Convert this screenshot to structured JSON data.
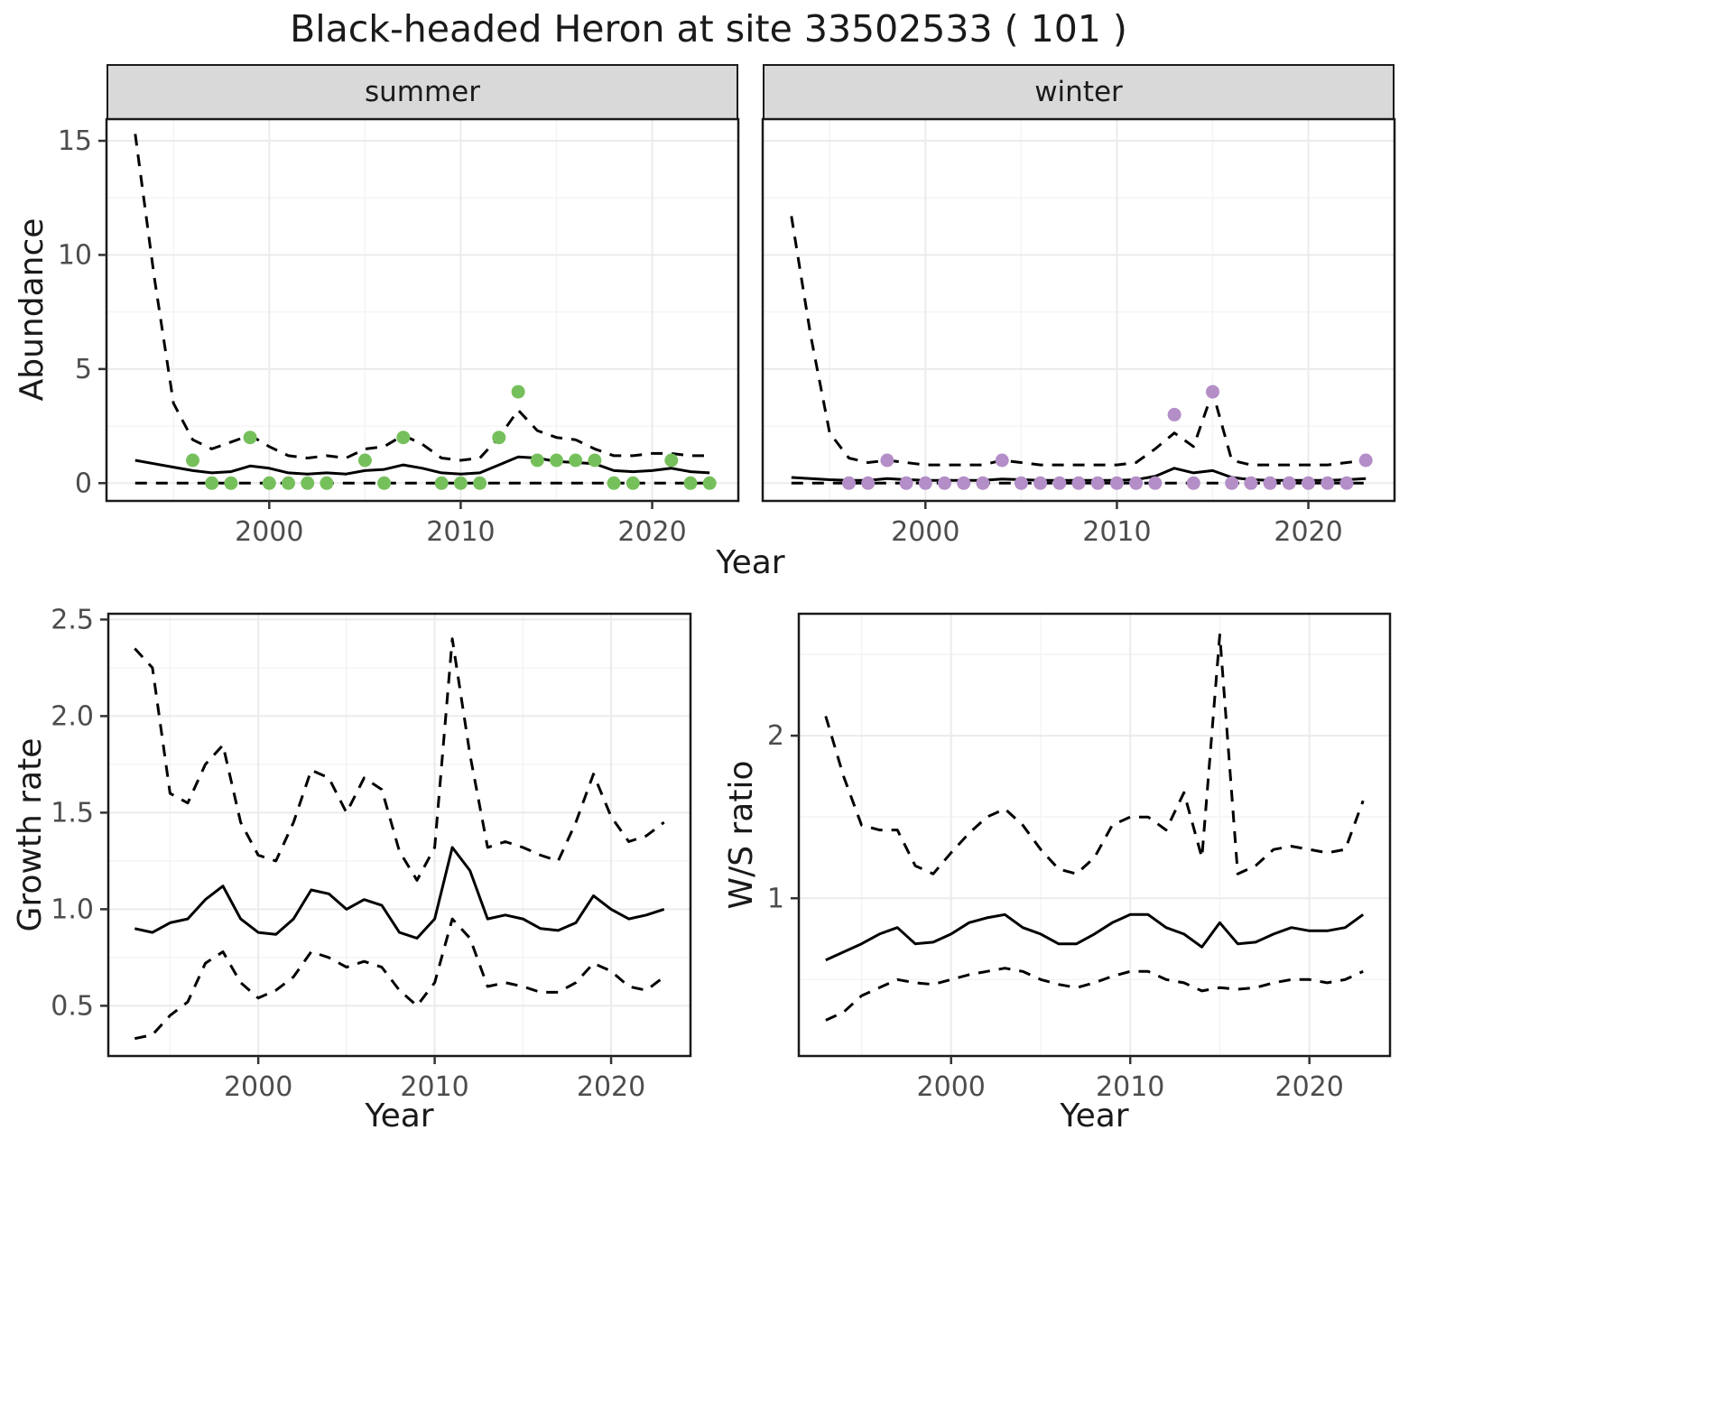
{
  "title": "Black-headed Heron at site 33502533 ( 101 )",
  "colors": {
    "summer_point": "#76C05C",
    "winter_point": "#B48EC7",
    "strip_bg": "#D9D9D9",
    "grid_major": "#EBEBEB",
    "grid_minor": "#F4F4F4",
    "panel_border": "#1A1A1A",
    "line": "#000000",
    "tick_label": "#4D4D4D",
    "tick_mark": "#333333"
  },
  "top_row": {
    "ylabel": "Abundance",
    "xlabel": "Year",
    "facets": [
      "summer",
      "winter"
    ]
  },
  "bottom_left": {
    "ylabel": "Growth rate",
    "xlabel": "Year"
  },
  "bottom_right": {
    "ylabel": "W/S ratio",
    "xlabel": "Year"
  },
  "chart_data": [
    {
      "id": "summer-abundance",
      "type": "line",
      "facet_label": "summer",
      "xlabel": "Year",
      "ylabel": "Abundance",
      "xlim": [
        1991.5,
        2024.5
      ],
      "ylim": [
        -0.78,
        15.95
      ],
      "xticks": [
        2000,
        2010,
        2020
      ],
      "xtick_labels": [
        "2000",
        "2010",
        "2020"
      ],
      "xminor": [
        1995,
        2005,
        2015
      ],
      "yticks": [
        0,
        5,
        10,
        15
      ],
      "ytick_labels": [
        "0",
        "5",
        "10",
        "15"
      ],
      "yminor": [
        2.5,
        7.5,
        12.5
      ],
      "show_ytick_labels": true,
      "x": [
        1993,
        1994,
        1995,
        1996,
        1997,
        1998,
        1999,
        2000,
        2001,
        2002,
        2003,
        2004,
        2005,
        2006,
        2007,
        2008,
        2009,
        2010,
        2011,
        2012,
        2013,
        2014,
        2015,
        2016,
        2017,
        2018,
        2019,
        2020,
        2021,
        2022,
        2023
      ],
      "series": [
        {
          "name": "upper_ci",
          "style": "dashed",
          "values": [
            15.3,
            9.0,
            3.5,
            1.9,
            1.5,
            1.8,
            2.1,
            1.6,
            1.2,
            1.1,
            1.2,
            1.1,
            1.5,
            1.6,
            2.1,
            1.7,
            1.1,
            1.0,
            1.1,
            2.0,
            3.2,
            2.3,
            2.0,
            1.9,
            1.5,
            1.2,
            1.2,
            1.3,
            1.3,
            1.2,
            1.2
          ]
        },
        {
          "name": "mean",
          "style": "solid",
          "values": [
            1.0,
            0.85,
            0.7,
            0.55,
            0.45,
            0.5,
            0.75,
            0.65,
            0.45,
            0.4,
            0.45,
            0.4,
            0.55,
            0.6,
            0.8,
            0.65,
            0.45,
            0.4,
            0.45,
            0.8,
            1.15,
            1.1,
            0.95,
            0.9,
            0.85,
            0.55,
            0.5,
            0.55,
            0.65,
            0.5,
            0.45
          ]
        },
        {
          "name": "lower_ci",
          "style": "dashed",
          "values": [
            0,
            0,
            0,
            0,
            0,
            0,
            0,
            0,
            0,
            0,
            0,
            0,
            0,
            0,
            0,
            0,
            0,
            0,
            0,
            0,
            0,
            0,
            0,
            0,
            0,
            0,
            0,
            0,
            0,
            0,
            0
          ]
        }
      ],
      "points": {
        "color": "#76C05C",
        "x": [
          1996,
          1997,
          1998,
          1999,
          2000,
          2001,
          2002,
          2003,
          2005,
          2006,
          2007,
          2009,
          2010,
          2011,
          2012,
          2013,
          2014,
          2015,
          2016,
          2017,
          2018,
          2019,
          2021,
          2022,
          2023
        ],
        "y": [
          1,
          0,
          0,
          2,
          0,
          0,
          0,
          0,
          1,
          0,
          2,
          0,
          0,
          0,
          2,
          4,
          1,
          1,
          1,
          1,
          0,
          0,
          1,
          0,
          0
        ]
      }
    },
    {
      "id": "winter-abundance",
      "type": "line",
      "facet_label": "winter",
      "xlabel": "Year",
      "ylabel": "Abundance",
      "xlim": [
        1991.5,
        2024.5
      ],
      "ylim": [
        -0.78,
        15.95
      ],
      "xticks": [
        2000,
        2010,
        2020
      ],
      "xtick_labels": [
        "2000",
        "2010",
        "2020"
      ],
      "xminor": [
        1995,
        2005,
        2015
      ],
      "yticks": [
        0,
        5,
        10,
        15
      ],
      "ytick_labels": [
        "0",
        "5",
        "10",
        "15"
      ],
      "yminor": [
        2.5,
        7.5,
        12.5
      ],
      "show_ytick_labels": false,
      "x": [
        1993,
        1994,
        1995,
        1996,
        1997,
        1998,
        1999,
        2000,
        2001,
        2002,
        2003,
        2004,
        2005,
        2006,
        2007,
        2008,
        2009,
        2010,
        2011,
        2012,
        2013,
        2014,
        2015,
        2016,
        2017,
        2018,
        2019,
        2020,
        2021,
        2022,
        2023
      ],
      "series": [
        {
          "name": "upper_ci",
          "style": "dashed",
          "values": [
            11.7,
            6.5,
            2.2,
            1.1,
            0.9,
            1.0,
            0.9,
            0.8,
            0.8,
            0.8,
            0.8,
            1.0,
            0.9,
            0.8,
            0.8,
            0.8,
            0.8,
            0.8,
            0.9,
            1.5,
            2.2,
            1.6,
            4.0,
            1.0,
            0.8,
            0.8,
            0.8,
            0.8,
            0.8,
            0.9,
            1.0
          ]
        },
        {
          "name": "mean",
          "style": "solid",
          "values": [
            0.25,
            0.2,
            0.15,
            0.12,
            0.12,
            0.2,
            0.15,
            0.12,
            0.12,
            0.12,
            0.12,
            0.18,
            0.15,
            0.12,
            0.12,
            0.12,
            0.12,
            0.12,
            0.15,
            0.3,
            0.65,
            0.45,
            0.55,
            0.25,
            0.15,
            0.12,
            0.12,
            0.12,
            0.12,
            0.15,
            0.2
          ]
        },
        {
          "name": "lower_ci",
          "style": "dashed",
          "values": [
            0,
            0,
            0,
            0,
            0,
            0,
            0,
            0,
            0,
            0,
            0,
            0,
            0,
            0,
            0,
            0,
            0,
            0,
            0,
            0,
            0,
            0,
            0,
            0,
            0,
            0,
            0,
            0,
            0,
            0,
            0
          ]
        }
      ],
      "points": {
        "color": "#B48EC7",
        "x": [
          1996,
          1997,
          1998,
          1999,
          2000,
          2001,
          2002,
          2003,
          2004,
          2005,
          2006,
          2007,
          2008,
          2009,
          2010,
          2011,
          2012,
          2013,
          2014,
          2015,
          2016,
          2017,
          2018,
          2019,
          2020,
          2021,
          2022,
          2023
        ],
        "y": [
          0,
          0,
          1,
          0,
          0,
          0,
          0,
          0,
          1,
          0,
          0,
          0,
          0,
          0,
          0,
          0,
          0,
          3,
          0,
          4,
          0,
          0,
          0,
          0,
          0,
          0,
          0,
          1
        ]
      }
    },
    {
      "id": "growth-rate",
      "type": "line",
      "xlabel": "Year",
      "ylabel": "Growth rate",
      "xlim": [
        1991.5,
        2024.5
      ],
      "ylim": [
        0.24,
        2.53
      ],
      "xticks": [
        2000,
        2010,
        2020
      ],
      "xtick_labels": [
        "2000",
        "2010",
        "2020"
      ],
      "xminor": [
        1995,
        2005,
        2015
      ],
      "yticks": [
        0.5,
        1.0,
        1.5,
        2.0,
        2.5
      ],
      "ytick_labels": [
        "0.5",
        "1.0",
        "1.5",
        "2.0",
        "2.5"
      ],
      "yminor": [
        0.75,
        1.25,
        1.75,
        2.25
      ],
      "show_ytick_labels": true,
      "x": [
        1993,
        1994,
        1995,
        1996,
        1997,
        1998,
        1999,
        2000,
        2001,
        2002,
        2003,
        2004,
        2005,
        2006,
        2007,
        2008,
        2009,
        2010,
        2011,
        2012,
        2013,
        2014,
        2015,
        2016,
        2017,
        2018,
        2019,
        2020,
        2021,
        2022,
        2023
      ],
      "series": [
        {
          "name": "upper_ci",
          "style": "dashed",
          "values": [
            2.35,
            2.25,
            1.6,
            1.55,
            1.75,
            1.85,
            1.45,
            1.28,
            1.25,
            1.45,
            1.72,
            1.68,
            1.5,
            1.68,
            1.62,
            1.3,
            1.15,
            1.32,
            2.4,
            1.8,
            1.32,
            1.35,
            1.32,
            1.28,
            1.25,
            1.45,
            1.7,
            1.48,
            1.35,
            1.38,
            1.45
          ]
        },
        {
          "name": "mean",
          "style": "solid",
          "values": [
            0.9,
            0.88,
            0.93,
            0.95,
            1.05,
            1.12,
            0.95,
            0.88,
            0.87,
            0.95,
            1.1,
            1.08,
            1.0,
            1.05,
            1.02,
            0.88,
            0.85,
            0.95,
            1.32,
            1.2,
            0.95,
            0.97,
            0.95,
            0.9,
            0.89,
            0.93,
            1.07,
            1.0,
            0.95,
            0.97,
            1.0
          ]
        },
        {
          "name": "lower_ci",
          "style": "dashed",
          "values": [
            0.33,
            0.35,
            0.45,
            0.52,
            0.72,
            0.78,
            0.62,
            0.54,
            0.58,
            0.65,
            0.78,
            0.75,
            0.7,
            0.73,
            0.7,
            0.58,
            0.5,
            0.62,
            0.95,
            0.85,
            0.6,
            0.62,
            0.6,
            0.57,
            0.57,
            0.62,
            0.72,
            0.68,
            0.6,
            0.58,
            0.65
          ]
        }
      ]
    },
    {
      "id": "ws-ratio",
      "type": "line",
      "xlabel": "Year",
      "ylabel": "W/S ratio",
      "xlim": [
        1991.5,
        2024.5
      ],
      "ylim": [
        0.03,
        2.75
      ],
      "xticks": [
        2000,
        2010,
        2020
      ],
      "xtick_labels": [
        "2000",
        "2010",
        "2020"
      ],
      "xminor": [
        1995,
        2005,
        2015
      ],
      "yticks": [
        1,
        2
      ],
      "ytick_labels": [
        "1",
        "2"
      ],
      "yminor": [
        0.5,
        1.5,
        2.5
      ],
      "show_ytick_labels": true,
      "x": [
        1993,
        1994,
        1995,
        1996,
        1997,
        1998,
        1999,
        2000,
        2001,
        2002,
        2003,
        2004,
        2005,
        2006,
        2007,
        2008,
        2009,
        2010,
        2011,
        2012,
        2013,
        2014,
        2015,
        2016,
        2017,
        2018,
        2019,
        2020,
        2021,
        2022,
        2023
      ],
      "series": [
        {
          "name": "upper_ci",
          "style": "dashed",
          "values": [
            2.12,
            1.75,
            1.45,
            1.42,
            1.42,
            1.2,
            1.15,
            1.28,
            1.4,
            1.5,
            1.55,
            1.45,
            1.3,
            1.18,
            1.15,
            1.25,
            1.45,
            1.5,
            1.5,
            1.42,
            1.65,
            1.25,
            2.62,
            1.15,
            1.2,
            1.3,
            1.32,
            1.3,
            1.28,
            1.3,
            1.6
          ]
        },
        {
          "name": "mean",
          "style": "solid",
          "values": [
            0.62,
            0.67,
            0.72,
            0.78,
            0.82,
            0.72,
            0.73,
            0.78,
            0.85,
            0.88,
            0.9,
            0.82,
            0.78,
            0.72,
            0.72,
            0.78,
            0.85,
            0.9,
            0.9,
            0.82,
            0.78,
            0.7,
            0.85,
            0.72,
            0.73,
            0.78,
            0.82,
            0.8,
            0.8,
            0.82,
            0.9
          ]
        },
        {
          "name": "lower_ci",
          "style": "dashed",
          "values": [
            0.25,
            0.3,
            0.4,
            0.45,
            0.5,
            0.48,
            0.47,
            0.5,
            0.53,
            0.55,
            0.57,
            0.55,
            0.5,
            0.47,
            0.45,
            0.48,
            0.52,
            0.55,
            0.55,
            0.5,
            0.48,
            0.43,
            0.45,
            0.44,
            0.45,
            0.48,
            0.5,
            0.5,
            0.48,
            0.5,
            0.55
          ]
        }
      ]
    }
  ]
}
